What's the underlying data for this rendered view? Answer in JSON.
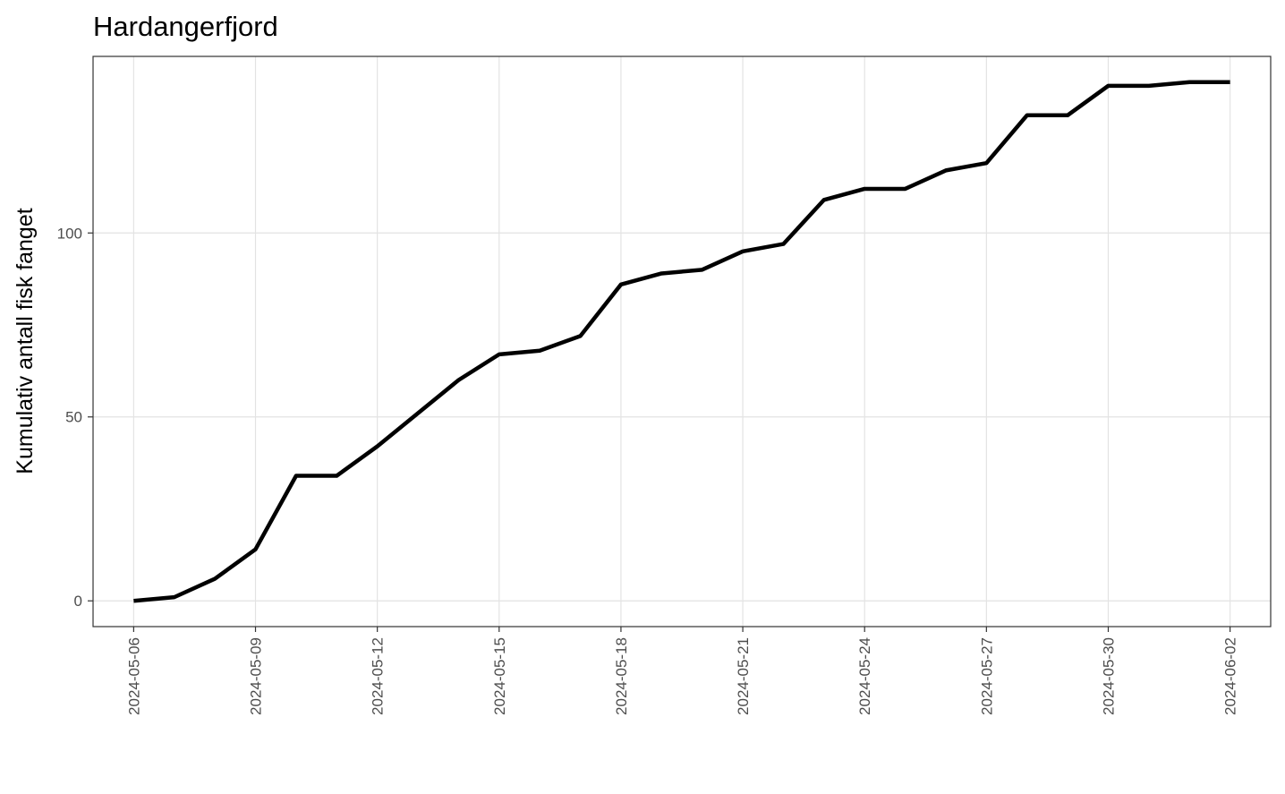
{
  "chart_data": {
    "type": "line",
    "title": "Hardangerfjord",
    "y_label": "Kumulativ antall fisk fanget",
    "x": [
      "2024-05-06",
      "2024-05-07",
      "2024-05-08",
      "2024-05-09",
      "2024-05-10",
      "2024-05-11",
      "2024-05-12",
      "2024-05-13",
      "2024-05-14",
      "2024-05-15",
      "2024-05-16",
      "2024-05-17",
      "2024-05-18",
      "2024-05-19",
      "2024-05-20",
      "2024-05-21",
      "2024-05-22",
      "2024-05-23",
      "2024-05-24",
      "2024-05-25",
      "2024-05-26",
      "2024-05-27",
      "2024-05-28",
      "2024-05-29",
      "2024-05-30",
      "2024-05-31",
      "2024-06-01",
      "2024-06-02"
    ],
    "values": [
      0,
      1,
      6,
      14,
      34,
      34,
      42,
      51,
      60,
      67,
      68,
      72,
      86,
      89,
      90,
      95,
      97,
      109,
      112,
      112,
      117,
      119,
      132,
      132,
      140,
      140,
      141,
      141
    ],
    "color": "#000000",
    "xlim": [
      "2024-05-05",
      "2024-06-03"
    ],
    "xticks": [
      "2024-05-06",
      "2024-05-09",
      "2024-05-12",
      "2024-05-15",
      "2024-05-18",
      "2024-05-21",
      "2024-05-24",
      "2024-05-27",
      "2024-05-30",
      "2024-06-02"
    ],
    "ylim": [
      -7,
      148
    ],
    "yticks": [
      0,
      50,
      100
    ],
    "grid": true
  }
}
